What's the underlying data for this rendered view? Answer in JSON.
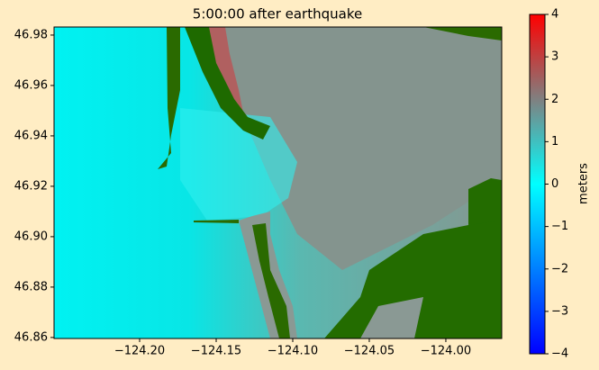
{
  "chart_data": {
    "type": "image",
    "title": "5:00:00 after earthquake",
    "xlim": [
      -124.2559,
      -123.9635
    ],
    "xticks": [
      {
        "value": -124.2,
        "label": "−124.20"
      },
      {
        "value": -124.15,
        "label": "−124.15"
      },
      {
        "value": -124.1,
        "label": "−124.10"
      },
      {
        "value": -124.05,
        "label": "−124.05"
      },
      {
        "value": -124.0,
        "label": "−124.00"
      }
    ],
    "ylim": [
      46.8596,
      46.9832
    ],
    "yticks": [
      46.86,
      46.88,
      {
        "value": 46.9,
        "label": "46.90"
      },
      46.92,
      46.94,
      46.96,
      46.98
    ],
    "colorbar_label": "meters",
    "clim": [
      -4,
      4
    ],
    "cticks": [
      {
        "value": -4,
        "label": "−4"
      },
      {
        "value": -3,
        "label": "−3"
      },
      {
        "value": -2,
        "label": "−2"
      },
      {
        "value": -1,
        "label": "−1"
      },
      0,
      1,
      2,
      3,
      4
    ]
  }
}
